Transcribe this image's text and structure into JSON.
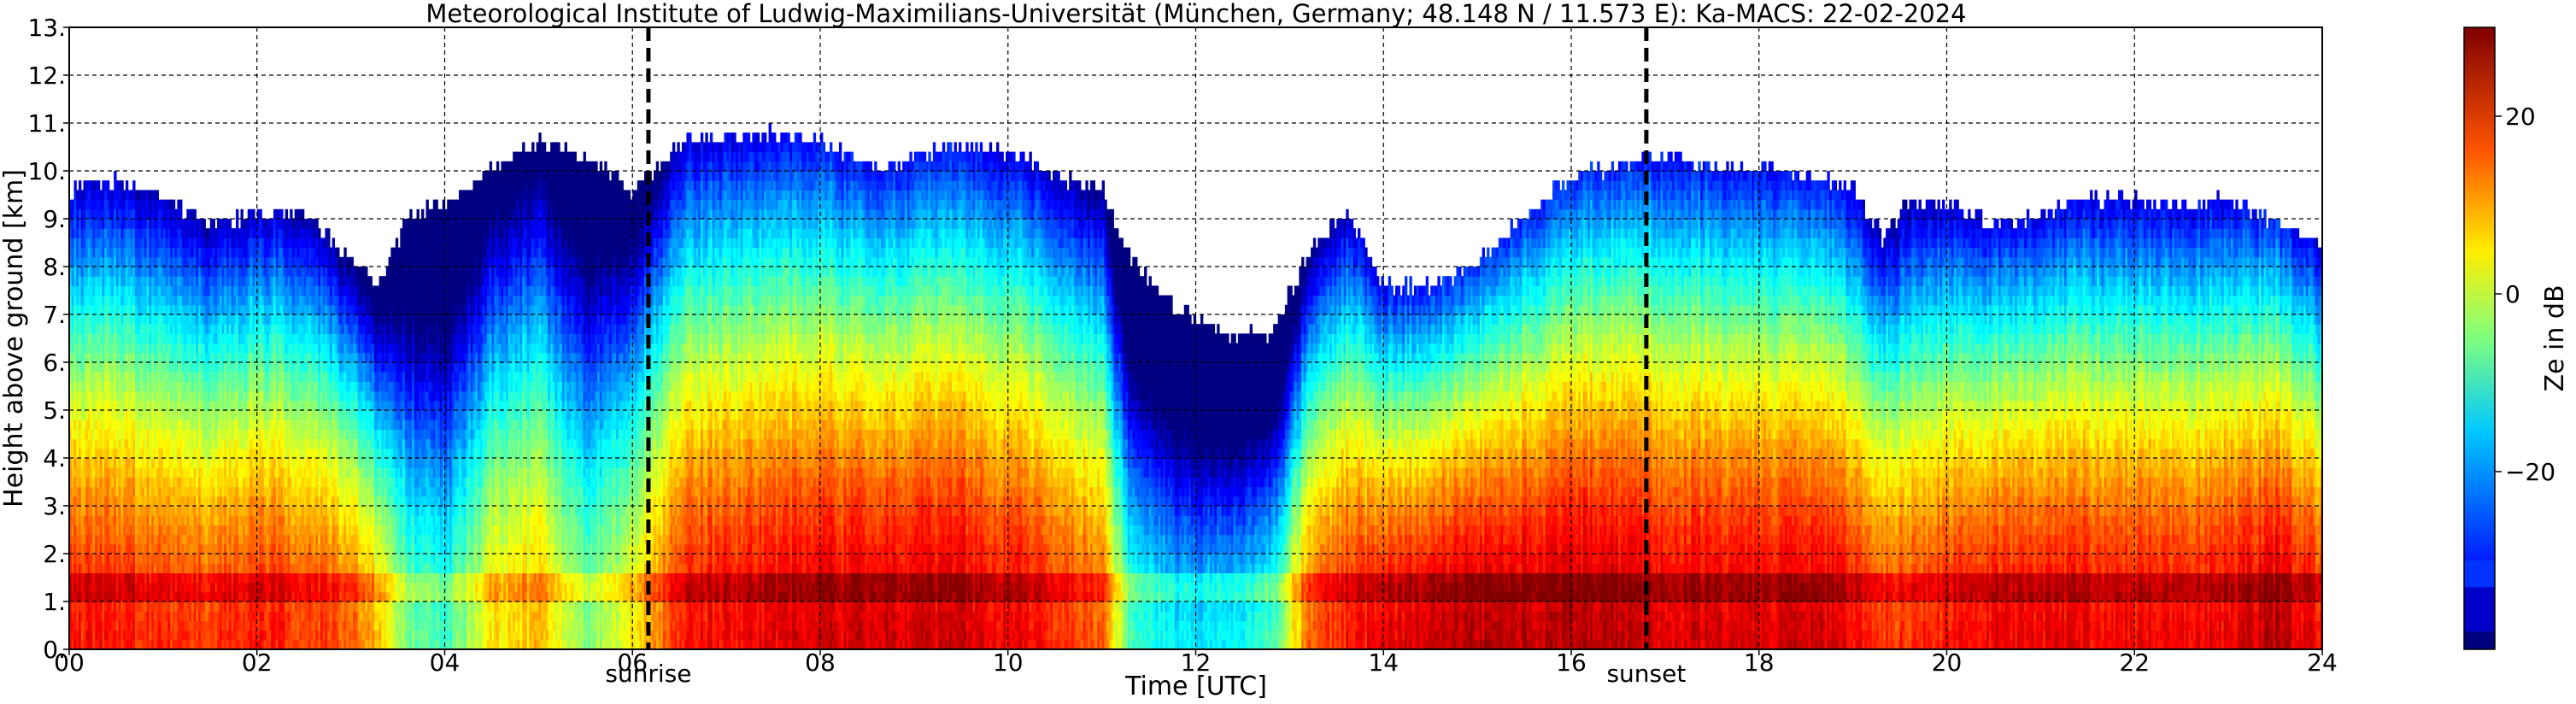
{
  "chart_data": {
    "type": "heatmap",
    "title": "Meteorological Institute of Ludwig-Maximilians-Universität (München, Germany; 48.148 N / 11.573 E):    Ka-MACS: 22-02-2024",
    "xlabel": "Time [UTC]",
    "ylabel": "Height above ground [km]",
    "xlim": [
      0,
      24
    ],
    "ylim": [
      0,
      13
    ],
    "x_ticks": [
      "00",
      "02",
      "04",
      "06",
      "08",
      "10",
      "12",
      "14",
      "16",
      "18",
      "20",
      "22",
      "24"
    ],
    "y_ticks": [
      "0.",
      "1.",
      "2.",
      "3.",
      "4.",
      "5.",
      "6.",
      "7.",
      "8.",
      "9.",
      "10.",
      "11.",
      "12.",
      "13."
    ],
    "grid": true,
    "colorbar": {
      "label": "Ze in dB",
      "range": [
        -40,
        30
      ],
      "ticks": [
        "20",
        "0",
        "−20"
      ],
      "tick_values": [
        20,
        0,
        -20
      ],
      "colormap": "jet"
    },
    "markers": [
      {
        "label": "sunrise",
        "time": 6.17
      },
      {
        "label": "sunset",
        "time": 16.8
      }
    ],
    "profile_time": [
      0,
      0.5,
      1,
      1.5,
      2,
      2.5,
      3,
      3.3,
      3.6,
      4,
      4.5,
      5,
      5.5,
      6,
      6.5,
      7,
      7.5,
      8,
      8.5,
      9,
      9.5,
      10,
      10.5,
      11,
      11.3,
      11.8,
      12.3,
      12.8,
      13.2,
      13.6,
      14,
      14.5,
      15,
      15.5,
      16,
      16.5,
      17,
      17.5,
      18,
      18.5,
      19,
      19.3,
      19.6,
      20,
      20.5,
      21,
      21.5,
      22,
      22.5,
      23,
      23.5,
      24
    ],
    "cloud_top_km": [
      9.5,
      9.7,
      9.3,
      8.8,
      9.0,
      9.0,
      8.0,
      7.5,
      9.0,
      9.2,
      10.0,
      10.5,
      10.2,
      9.5,
      10.5,
      10.6,
      10.7,
      10.5,
      10.0,
      10.2,
      10.4,
      10.3,
      9.8,
      9.5,
      8.0,
      7.0,
      6.5,
      6.5,
      8.3,
      9.0,
      7.5,
      7.5,
      8.0,
      9.0,
      9.8,
      10.0,
      10.2,
      10.0,
      10.0,
      9.8,
      9.5,
      8.5,
      9.3,
      9.2,
      8.8,
      9.0,
      9.3,
      9.3,
      9.2,
      9.3,
      8.8,
      8.3
    ],
    "surface_ze_dbz": [
      20,
      20,
      18,
      18,
      20,
      18,
      15,
      8,
      -5,
      -10,
      5,
      8,
      -5,
      5,
      20,
      22,
      22,
      24,
      24,
      24,
      24,
      22,
      20,
      15,
      -10,
      -15,
      -15,
      -10,
      15,
      20,
      22,
      26,
      26,
      26,
      26,
      26,
      24,
      24,
      24,
      24,
      22,
      18,
      18,
      20,
      22,
      22,
      22,
      22,
      22,
      22,
      26,
      20
    ],
    "melting_layer_km": 1.2
  }
}
